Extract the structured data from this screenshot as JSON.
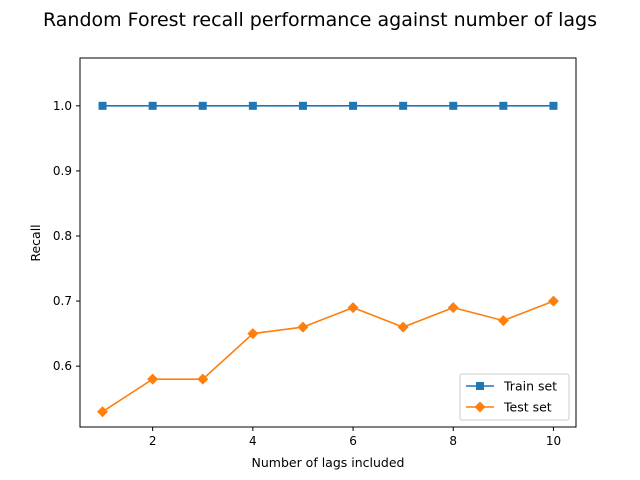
{
  "chart_data": {
    "type": "line",
    "title": "Random Forest recall performance against number of lags",
    "xlabel": "Number of lags included",
    "ylabel": "Recall",
    "x": [
      1,
      2,
      3,
      4,
      5,
      6,
      7,
      8,
      9,
      10
    ],
    "xticks": [
      2,
      4,
      6,
      8,
      10
    ],
    "xlim": [
      0.55,
      10.45
    ],
    "yticks": [
      0.6,
      0.7,
      0.8,
      0.9,
      1.0
    ],
    "ytick_labels": [
      "0.6",
      "0.7",
      "0.8",
      "0.9",
      "1.0"
    ],
    "ylim": [
      0.5065,
      1.0735
    ],
    "grid": false,
    "legend_position": "lower-right",
    "series": [
      {
        "name": "Train set",
        "values": [
          1.0,
          1.0,
          1.0,
          1.0,
          1.0,
          1.0,
          1.0,
          1.0,
          1.0,
          1.0
        ],
        "color": "#1f77b4",
        "marker": "square"
      },
      {
        "name": "Test set",
        "values": [
          0.53,
          0.58,
          0.58,
          0.65,
          0.66,
          0.69,
          0.66,
          0.69,
          0.67,
          0.7
        ],
        "color": "#ff7f0e",
        "marker": "diamond"
      }
    ]
  }
}
